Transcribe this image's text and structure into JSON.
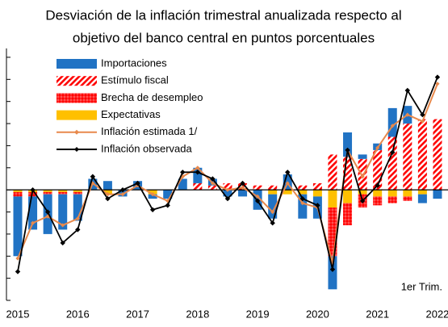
{
  "chart_data": {
    "type": "bar",
    "title": [
      "Desviación de la inflación trimestral anualizada respecto al",
      "objetivo del banco central en puntos porcentuales"
    ],
    "annotation": "1er Trim.",
    "categories": [
      "2015",
      null,
      null,
      null,
      "2016",
      null,
      null,
      null,
      "2017",
      null,
      null,
      null,
      "2018",
      null,
      null,
      null,
      "2019",
      null,
      null,
      null,
      "2020",
      null,
      null,
      null,
      "2021",
      null,
      null,
      null,
      "2022"
    ],
    "ylim": [
      -5,
      6.4
    ],
    "yticks": [
      -5,
      -4,
      -3,
      -2,
      -1,
      0,
      1,
      2,
      3,
      4,
      5,
      6
    ],
    "series": [
      {
        "name": "Importaciones",
        "kind": "bar",
        "color": "#2173c4",
        "values": [
          -2.7,
          -1.5,
          -1.8,
          -1.6,
          -1.2,
          0.5,
          0.4,
          -0.3,
          0.4,
          -0.2,
          -0.4,
          0.5,
          0.7,
          0.3,
          -0.3,
          -0.3,
          -0.9,
          -1.1,
          0.7,
          -1.1,
          -1.0,
          -1.5,
          1.1,
          0.2,
          0.3,
          1.3,
          0.8,
          -0.4,
          -0.4
        ]
      },
      {
        "name": "Estímulo fiscal",
        "kind": "bar",
        "color": "#ff0000",
        "pattern": "hatch",
        "values": [
          0,
          0,
          0,
          0,
          0,
          0,
          0,
          0,
          0,
          0,
          0,
          0,
          0.3,
          0.2,
          0.3,
          0.3,
          0.2,
          0.2,
          0,
          0.2,
          0.3,
          1.6,
          1.5,
          1.4,
          1.8,
          2.4,
          3.0,
          3.2,
          3.2
        ]
      },
      {
        "name": "Brecha de desempleo",
        "kind": "bar",
        "color": "#ff0000",
        "pattern": "dots",
        "values": [
          -0.2,
          -0.2,
          -0.1,
          -0.1,
          -0.1,
          0,
          0,
          0,
          0,
          0,
          0,
          0,
          0,
          0,
          0,
          0,
          0,
          0,
          0,
          0,
          0,
          -2.2,
          -1.0,
          -0.6,
          -0.4,
          -0.3,
          -0.2,
          0,
          0
        ]
      },
      {
        "name": "Expectativas",
        "kind": "bar",
        "color": "#ffc000",
        "values": [
          -0.1,
          -0.1,
          -0.1,
          -0.1,
          -0.1,
          0,
          -0.2,
          0,
          0,
          -0.2,
          0,
          0,
          0,
          0,
          0,
          0,
          0,
          -0.2,
          -0.2,
          -0.2,
          -0.3,
          -0.8,
          -0.6,
          -0.2,
          -0.3,
          -0.3,
          -0.3,
          -0.2,
          0
        ]
      },
      {
        "name": "Inflación estimada 1/",
        "kind": "line",
        "color": "#e8894c",
        "values": [
          -3.1,
          -1.5,
          -1.2,
          -1.6,
          -1.3,
          0.3,
          -0.2,
          -0.2,
          0.2,
          -0.2,
          -0.5,
          0.6,
          1.0,
          0.3,
          0,
          0.1,
          -0.3,
          -1.0,
          0.3,
          -0.6,
          -0.8,
          -3.3,
          1.8,
          0.6,
          1.9,
          2.9,
          3.4,
          3.1,
          4.8
        ]
      },
      {
        "name": "Inflación observada",
        "kind": "line",
        "color": "#000000",
        "values": [
          -3.7,
          0,
          -1.0,
          -2.4,
          -1.8,
          0.6,
          -0.4,
          0,
          0.3,
          -0.9,
          -0.7,
          0.8,
          0.8,
          0.5,
          -0.4,
          0.3,
          -0.5,
          -1.5,
          0.8,
          -0.4,
          -0.7,
          -3.6,
          1.8,
          -0.5,
          0.2,
          1.7,
          4.5,
          3.4,
          5.1
        ]
      }
    ]
  }
}
